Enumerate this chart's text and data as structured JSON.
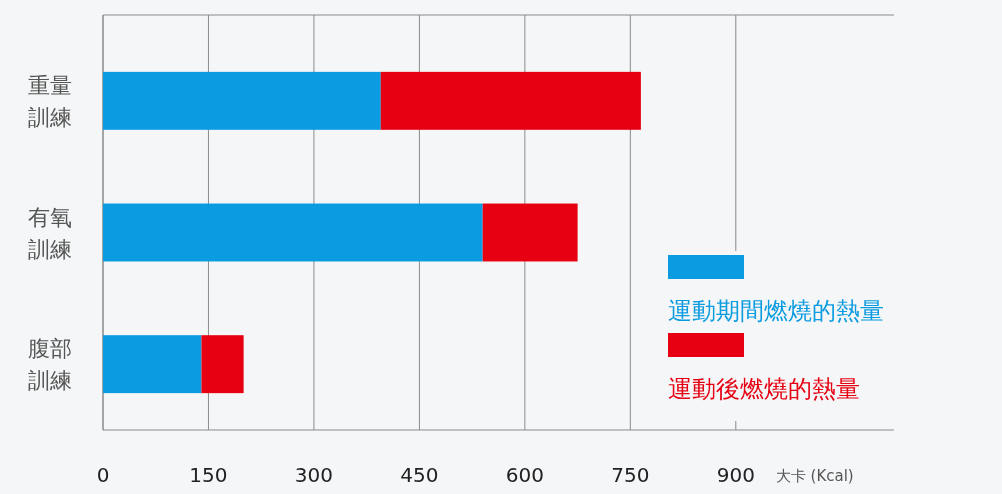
{
  "chart_data": {
    "type": "bar",
    "orientation": "horizontal",
    "stacked": true,
    "categories": [
      "重量訓練",
      "有氧訓練",
      "腹部訓練"
    ],
    "series": [
      {
        "name": "運動期間燃燒的熱量",
        "color": "#0a9be0",
        "values": [
          395,
          540,
          140
        ]
      },
      {
        "name": "運動後燃燒的熱量",
        "color": "#e60012",
        "values": [
          370,
          135,
          60
        ]
      }
    ],
    "xlabel": "大卡 (Kcal)",
    "xlim": [
      0,
      1125
    ],
    "xticks": [
      0,
      150,
      300,
      450,
      600,
      750,
      900
    ],
    "grid": "x",
    "legend": "bottom right"
  }
}
